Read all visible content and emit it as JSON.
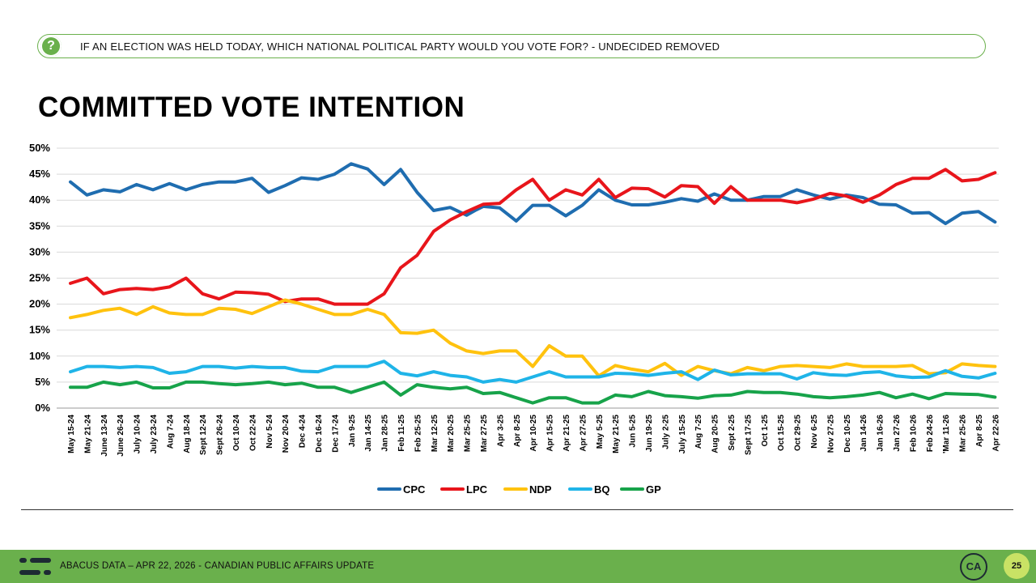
{
  "header": {
    "question_icon": "question-mark-icon",
    "question_icon_glyph": "?",
    "question": "IF AN ELECTION WAS HELD TODAY, WHICH NATIONAL POLITICAL PARTY WOULD YOU VOTE FOR? - UNDECIDED REMOVED",
    "title": "COMMITTED VOTE INTENTION"
  },
  "chart_data": {
    "type": "line",
    "title": "",
    "xlabel": "",
    "ylabel": "",
    "ylim": [
      0,
      50
    ],
    "yticks": [
      "0%",
      "5%",
      "10%",
      "15%",
      "20%",
      "25%",
      "30%",
      "35%",
      "40%",
      "45%",
      "50%"
    ],
    "grid": true,
    "legend_position": "bottom",
    "categories": [
      "May 15-24",
      "May 21-24",
      "June 13-24",
      "June 26-24",
      "July 10-24",
      "July 23-24",
      "Aug 7-24",
      "Aug 18-24",
      "Sept 12-24",
      "Sept 26-24",
      "Oct 10-24",
      "Oct 22-24",
      "Nov 5-24",
      "Nov 20-24",
      "Dec 4-24",
      "Dec 16-24",
      "Dec 17-24",
      "Jan 9-25",
      "Jan 14-25",
      "Jan 28-25",
      "Feb 11-25",
      "Feb 25-25",
      "Mar 12-25",
      "Mar 20-25",
      "Mar 25-25",
      "Mar 27-25",
      "Apr 3-25",
      "Apr 8-25",
      "Apr 10-25",
      "Apr 15-25",
      "Apr 21-25",
      "Apr 27-25",
      "May 5-25",
      "May 21-25",
      "Jun 5-25",
      "Jun 19-25",
      "July 2-25",
      "July 15-25",
      "Aug 7-25",
      "Aug 20-25",
      "Sept 2-25",
      "Sept 17-25",
      "Oct 1-25",
      "Oct 15-25",
      "Oct 29-25",
      "Nov 6-25",
      "Nov 27-25",
      "Dec 10-25",
      "Jan 14-26",
      "Jan 16-26",
      "Jan 27-26",
      "Feb 10-26",
      "Feb 24-26",
      "'Mar 11-26",
      "Mar 25-26",
      "Apr 8-25",
      "Apr 22-26"
    ],
    "x_positions": [
      0,
      1,
      2,
      3,
      4,
      5,
      6,
      7,
      8,
      9,
      10,
      11,
      12,
      13,
      14,
      15,
      16,
      17,
      18,
      19,
      20,
      21,
      22,
      23,
      24,
      25,
      26,
      27,
      28,
      29,
      30,
      31,
      32,
      33,
      34,
      35,
      36,
      37,
      38,
      39,
      40,
      41,
      42,
      43,
      44,
      45,
      46,
      47,
      48,
      49,
      50,
      51,
      52,
      53,
      54,
      55,
      56
    ],
    "series": [
      {
        "name": "CPC",
        "color": "#1f6db0",
        "points": [
          [
            0,
            43.5
          ],
          [
            1,
            41
          ],
          [
            2,
            42
          ],
          [
            3,
            41.6
          ],
          [
            4,
            43
          ],
          [
            5,
            42
          ],
          [
            6,
            43.2
          ],
          [
            7,
            42
          ],
          [
            8,
            43
          ],
          [
            9,
            43.5
          ],
          [
            10,
            43.5
          ],
          [
            11,
            44.2
          ],
          [
            12,
            41.5
          ],
          [
            13,
            42.8
          ],
          [
            14,
            44.3
          ],
          [
            15,
            44
          ],
          [
            16,
            45
          ],
          [
            17,
            47
          ],
          [
            18,
            46
          ],
          [
            19,
            43
          ],
          [
            20,
            45.9
          ],
          [
            21,
            41.5
          ],
          [
            22,
            38
          ],
          [
            23,
            38.6
          ],
          [
            24,
            37.1
          ],
          [
            24.5,
            38
          ],
          [
            25,
            38.8
          ],
          [
            26,
            38.5
          ],
          [
            27,
            36
          ],
          [
            28,
            39
          ],
          [
            29,
            39
          ],
          [
            30,
            37
          ],
          [
            31,
            39
          ],
          [
            32,
            42
          ],
          [
            33,
            40
          ],
          [
            34,
            39.1
          ],
          [
            35,
            39.1
          ],
          [
            36,
            39.6
          ],
          [
            37,
            40.3
          ],
          [
            38,
            39.8
          ],
          [
            39,
            41.2
          ],
          [
            40,
            40
          ],
          [
            41,
            40
          ],
          [
            42,
            40.7
          ],
          [
            43,
            40.7
          ],
          [
            44,
            42
          ],
          [
            45,
            41
          ],
          [
            46,
            40.2
          ],
          [
            47,
            41
          ],
          [
            48,
            40.5
          ],
          [
            49,
            39.2
          ],
          [
            50,
            39.1
          ],
          [
            51,
            37.5
          ],
          [
            52,
            37.6
          ],
          [
            53,
            35.5
          ],
          [
            54,
            37.5
          ],
          [
            55,
            37.8
          ],
          [
            56,
            35.8
          ]
        ]
      },
      {
        "name": "LPC",
        "color": "#e8151b",
        "points": [
          [
            0,
            24
          ],
          [
            1,
            25
          ],
          [
            2,
            22
          ],
          [
            3,
            22.8
          ],
          [
            4,
            23
          ],
          [
            5,
            22.8
          ],
          [
            6,
            23.3
          ],
          [
            7,
            25
          ],
          [
            8,
            22
          ],
          [
            9,
            21
          ],
          [
            10,
            22.3
          ],
          [
            11,
            22.2
          ],
          [
            12,
            21.9
          ],
          [
            13,
            20.5
          ],
          [
            14,
            21
          ],
          [
            15,
            21
          ],
          [
            16,
            20
          ],
          [
            17,
            20
          ],
          [
            18,
            20
          ],
          [
            19,
            22
          ],
          [
            20,
            27
          ],
          [
            21,
            29.4
          ],
          [
            22,
            34
          ],
          [
            23,
            36.2
          ],
          [
            24,
            37.8
          ],
          [
            25,
            39.2
          ],
          [
            26,
            39.4
          ],
          [
            27,
            42
          ],
          [
            28,
            44
          ],
          [
            29,
            40
          ],
          [
            30,
            42
          ],
          [
            31,
            41
          ],
          [
            32,
            44
          ],
          [
            33,
            40.5
          ],
          [
            34,
            42.3
          ],
          [
            35,
            42.2
          ],
          [
            36,
            40.6
          ],
          [
            37,
            42.8
          ],
          [
            38,
            42.6
          ],
          [
            39,
            39.4
          ],
          [
            40,
            42.6
          ],
          [
            41,
            40
          ],
          [
            42,
            40
          ],
          [
            43,
            40
          ],
          [
            44,
            39.5
          ],
          [
            45,
            40.2
          ],
          [
            46,
            41.3
          ],
          [
            47,
            40.8
          ],
          [
            48,
            39.6
          ],
          [
            49,
            41
          ],
          [
            50,
            43
          ],
          [
            51,
            44.2
          ],
          [
            52,
            44.2
          ],
          [
            53,
            45.9
          ],
          [
            54,
            43.7
          ],
          [
            55,
            44
          ],
          [
            56,
            45.3
          ]
        ]
      },
      {
        "name": "NDP",
        "color": "#ffc20e",
        "points": [
          [
            0,
            17.4
          ],
          [
            1,
            18
          ],
          [
            2,
            18.8
          ],
          [
            3,
            19.2
          ],
          [
            4,
            18
          ],
          [
            5,
            19.5
          ],
          [
            6,
            18.3
          ],
          [
            7,
            18
          ],
          [
            8,
            18
          ],
          [
            9,
            19.2
          ],
          [
            10,
            19
          ],
          [
            11,
            18.2
          ],
          [
            12,
            19.5
          ],
          [
            13,
            20.8
          ],
          [
            14,
            20
          ],
          [
            15,
            19
          ],
          [
            16,
            18
          ],
          [
            17,
            18
          ],
          [
            18,
            19
          ],
          [
            19,
            18
          ],
          [
            20,
            14.5
          ],
          [
            21,
            14.4
          ],
          [
            22,
            15
          ],
          [
            23,
            12.5
          ],
          [
            24,
            11
          ],
          [
            25,
            10.5
          ],
          [
            26,
            11
          ],
          [
            27,
            11
          ],
          [
            28,
            8
          ],
          [
            29,
            12
          ],
          [
            30,
            10
          ],
          [
            31,
            10
          ],
          [
            32,
            6.2
          ],
          [
            33,
            8.2
          ],
          [
            34,
            7.5
          ],
          [
            35,
            7
          ],
          [
            36,
            8.6
          ],
          [
            37,
            6.3
          ],
          [
            38,
            8
          ],
          [
            39,
            7.2
          ],
          [
            40,
            6.6
          ],
          [
            41,
            7.8
          ],
          [
            42,
            7.2
          ],
          [
            43,
            8
          ],
          [
            44,
            8.2
          ],
          [
            45,
            8
          ],
          [
            46,
            7.8
          ],
          [
            47,
            8.5
          ],
          [
            48,
            8
          ],
          [
            49,
            8
          ],
          [
            50,
            8
          ],
          [
            51,
            8.2
          ],
          [
            52,
            6.6
          ],
          [
            53,
            6.8
          ],
          [
            54,
            8.5
          ],
          [
            55,
            8.2
          ],
          [
            56,
            8
          ]
        ]
      },
      {
        "name": "BQ",
        "color": "#1fb4e8",
        "points": [
          [
            0,
            7
          ],
          [
            1,
            8
          ],
          [
            2,
            8
          ],
          [
            3,
            7.8
          ],
          [
            4,
            8
          ],
          [
            5,
            7.8
          ],
          [
            6,
            6.7
          ],
          [
            7,
            7
          ],
          [
            8,
            8
          ],
          [
            9,
            8
          ],
          [
            10,
            7.7
          ],
          [
            11,
            8
          ],
          [
            12,
            7.8
          ],
          [
            13,
            7.8
          ],
          [
            14,
            7.1
          ],
          [
            15,
            7
          ],
          [
            16,
            8
          ],
          [
            17,
            8
          ],
          [
            18,
            8
          ],
          [
            19,
            9
          ],
          [
            20,
            6.7
          ],
          [
            21,
            6.2
          ],
          [
            22,
            7
          ],
          [
            23,
            6.3
          ],
          [
            24,
            6
          ],
          [
            25,
            5
          ],
          [
            26,
            5.5
          ],
          [
            27,
            5
          ],
          [
            28,
            6
          ],
          [
            29,
            7
          ],
          [
            30,
            6
          ],
          [
            31,
            6
          ],
          [
            32,
            6
          ],
          [
            33,
            6.7
          ],
          [
            34,
            6.6
          ],
          [
            35,
            6.3
          ],
          [
            36,
            6.7
          ],
          [
            37,
            7
          ],
          [
            38,
            5.5
          ],
          [
            39,
            7.3
          ],
          [
            40,
            6.4
          ],
          [
            41,
            6.6
          ],
          [
            42,
            6.6
          ],
          [
            43,
            6.6
          ],
          [
            44,
            5.6
          ],
          [
            45,
            6.8
          ],
          [
            46,
            6.4
          ],
          [
            47,
            6.3
          ],
          [
            48,
            6.8
          ],
          [
            49,
            7
          ],
          [
            50,
            6.2
          ],
          [
            51,
            5.9
          ],
          [
            52,
            6
          ],
          [
            53,
            7.2
          ],
          [
            54,
            6.1
          ],
          [
            55,
            5.8
          ],
          [
            56,
            6.7
          ]
        ]
      },
      {
        "name": "GP",
        "color": "#17a34a",
        "points": [
          [
            0,
            4
          ],
          [
            1,
            4
          ],
          [
            2,
            5
          ],
          [
            3,
            4.5
          ],
          [
            4,
            5
          ],
          [
            5,
            3.9
          ],
          [
            6,
            3.9
          ],
          [
            7,
            5
          ],
          [
            8,
            5
          ],
          [
            9,
            4.7
          ],
          [
            10,
            4.5
          ],
          [
            11,
            4.7
          ],
          [
            12,
            5
          ],
          [
            13,
            4.5
          ],
          [
            14,
            4.8
          ],
          [
            15,
            4
          ],
          [
            16,
            4
          ],
          [
            17,
            3
          ],
          [
            18,
            4
          ],
          [
            19,
            5
          ],
          [
            20,
            2.5
          ],
          [
            21,
            4.5
          ],
          [
            22,
            4
          ],
          [
            23,
            3.7
          ],
          [
            24,
            4
          ],
          [
            25,
            2.8
          ],
          [
            26,
            3
          ],
          [
            27,
            2
          ],
          [
            28,
            1
          ],
          [
            29,
            2
          ],
          [
            30,
            2
          ],
          [
            31,
            1
          ],
          [
            32,
            1
          ],
          [
            33,
            2.5
          ],
          [
            34,
            2.2
          ],
          [
            35,
            3.2
          ],
          [
            36,
            2.4
          ],
          [
            37,
            2.2
          ],
          [
            38,
            1.9
          ],
          [
            39,
            2.4
          ],
          [
            40,
            2.5
          ],
          [
            41,
            3.2
          ],
          [
            42,
            3
          ],
          [
            43,
            3
          ],
          [
            44,
            2.7
          ],
          [
            45,
            2.2
          ],
          [
            46,
            2
          ],
          [
            47,
            2.2
          ],
          [
            48,
            2.5
          ],
          [
            49,
            3
          ],
          [
            50,
            2
          ],
          [
            51,
            2.7
          ],
          [
            52,
            1.8
          ],
          [
            53,
            2.8
          ],
          [
            54,
            2.7
          ],
          [
            55,
            2.6
          ],
          [
            56,
            2.1
          ]
        ]
      }
    ]
  },
  "footer": {
    "logo_icon": "abacus-logo-icon",
    "text": "ABACUS DATA – APR 22, 2026 - CANADIAN PUBLIC AFFAIRS UPDATE",
    "ca_logo_text": "CA",
    "page_number": "25"
  }
}
